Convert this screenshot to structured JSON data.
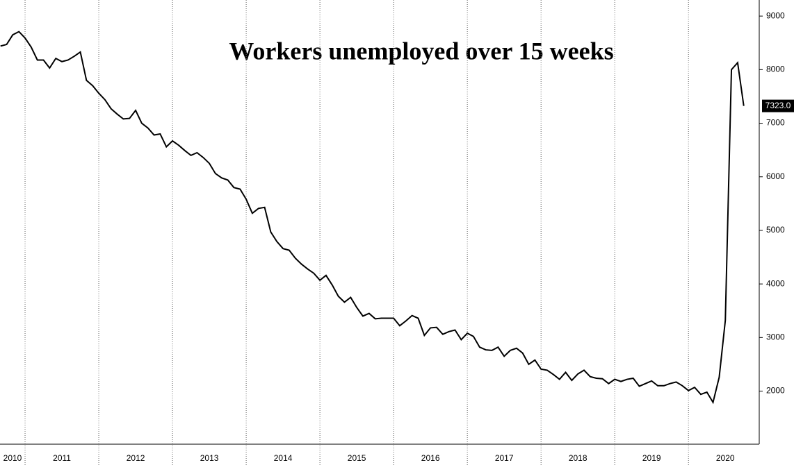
{
  "chart_data": {
    "type": "line",
    "title": "Workers unemployed over 15 weeks",
    "x": [
      2010.667,
      2010.75,
      2010.833,
      2010.917,
      2011,
      2011.083,
      2011.167,
      2011.25,
      2011.333,
      2011.417,
      2011.5,
      2011.583,
      2011.667,
      2011.75,
      2011.833,
      2011.917,
      2012,
      2012.083,
      2012.167,
      2012.25,
      2012.333,
      2012.417,
      2012.5,
      2012.583,
      2012.667,
      2012.75,
      2012.833,
      2012.917,
      2013,
      2013.083,
      2013.167,
      2013.25,
      2013.333,
      2013.417,
      2013.5,
      2013.583,
      2013.667,
      2013.75,
      2013.833,
      2013.917,
      2014,
      2014.083,
      2014.167,
      2014.25,
      2014.333,
      2014.417,
      2014.5,
      2014.583,
      2014.667,
      2014.75,
      2014.833,
      2014.917,
      2015,
      2015.083,
      2015.167,
      2015.25,
      2015.333,
      2015.417,
      2015.5,
      2015.583,
      2015.667,
      2015.75,
      2015.833,
      2015.917,
      2016,
      2016.083,
      2016.167,
      2016.25,
      2016.333,
      2016.417,
      2016.5,
      2016.583,
      2016.667,
      2016.75,
      2016.833,
      2016.917,
      2017,
      2017.083,
      2017.167,
      2017.25,
      2017.333,
      2017.417,
      2017.5,
      2017.583,
      2017.667,
      2017.75,
      2017.833,
      2017.917,
      2018,
      2018.083,
      2018.167,
      2018.25,
      2018.333,
      2018.417,
      2018.5,
      2018.583,
      2018.667,
      2018.75,
      2018.833,
      2018.917,
      2019,
      2019.083,
      2019.167,
      2019.25,
      2019.333,
      2019.417,
      2019.5,
      2019.583,
      2019.667,
      2019.75,
      2019.833,
      2019.917,
      2020,
      2020.083,
      2020.167,
      2020.25,
      2020.333,
      2020.417,
      2020.5,
      2020.583,
      2020.667,
      2020.75
    ],
    "values": [
      8440,
      8470,
      8650,
      8710,
      8590,
      8420,
      8180,
      8180,
      8030,
      8210,
      8150,
      8180,
      8250,
      8330,
      7800,
      7700,
      7560,
      7440,
      7270,
      7170,
      7080,
      7090,
      7240,
      7000,
      6910,
      6780,
      6800,
      6560,
      6670,
      6590,
      6490,
      6400,
      6450,
      6360,
      6250,
      6060,
      5980,
      5940,
      5800,
      5770,
      5580,
      5320,
      5410,
      5430,
      4970,
      4790,
      4660,
      4630,
      4480,
      4370,
      4280,
      4200,
      4070,
      4160,
      3980,
      3770,
      3660,
      3750,
      3560,
      3400,
      3450,
      3350,
      3360,
      3360,
      3360,
      3220,
      3310,
      3410,
      3360,
      3040,
      3180,
      3190,
      3060,
      3110,
      3140,
      2960,
      3080,
      3020,
      2820,
      2770,
      2760,
      2820,
      2650,
      2760,
      2800,
      2710,
      2500,
      2580,
      2410,
      2390,
      2310,
      2220,
      2350,
      2200,
      2320,
      2390,
      2270,
      2240,
      2230,
      2140,
      2220,
      2180,
      2220,
      2240,
      2090,
      2140,
      2190,
      2100,
      2100,
      2140,
      2170,
      2100,
      2010,
      2070,
      1940,
      1980,
      1790,
      2260,
      3320,
      8000,
      8130,
      7323
    ],
    "value_labels": [
      null,
      null,
      null,
      null,
      null,
      null,
      null,
      null,
      null,
      null,
      null,
      null,
      null,
      null,
      null,
      null,
      null,
      null,
      null,
      null,
      null,
      null,
      null,
      null,
      null,
      null,
      null,
      null,
      null,
      null,
      null,
      null,
      null,
      null,
      null,
      null,
      null,
      null,
      null,
      null,
      null,
      null,
      null,
      null,
      null,
      null,
      null,
      null,
      null,
      null,
      null,
      null,
      null,
      null,
      null,
      null,
      null,
      null,
      null,
      null,
      null,
      null,
      null,
      null,
      null,
      null,
      null,
      null,
      null,
      null,
      null,
      null,
      null,
      null,
      null,
      null,
      null,
      null,
      null,
      null,
      null,
      null,
      null,
      null,
      null,
      null,
      null,
      null,
      null,
      null,
      null,
      null,
      null,
      null,
      null,
      null,
      null,
      null,
      null,
      null,
      null,
      null,
      null,
      null,
      null,
      null,
      null,
      null,
      null,
      null,
      null,
      null,
      null,
      null,
      null,
      null,
      null,
      null,
      null,
      null,
      null,
      "7323.0"
    ],
    "color": "#000000",
    "xlim": [
      2010.66,
      2020.96
    ],
    "xticks": [
      {
        "value": 2010.5,
        "label": "2010"
      },
      {
        "value": 2011.5,
        "label": "2011"
      },
      {
        "value": 2012.5,
        "label": "2012"
      },
      {
        "value": 2013.5,
        "label": "2013"
      },
      {
        "value": 2014.5,
        "label": "2014"
      },
      {
        "value": 2015.5,
        "label": "2015"
      },
      {
        "value": 2016.5,
        "label": "2016"
      },
      {
        "value": 2017.5,
        "label": "2017"
      },
      {
        "value": 2018.5,
        "label": "2018"
      },
      {
        "value": 2019.5,
        "label": "2019"
      },
      {
        "value": 2020.5,
        "label": "2020"
      }
    ],
    "x_gridlines": [
      2011,
      2012,
      2013,
      2014,
      2015,
      2016,
      2017,
      2018,
      2019,
      2020
    ],
    "ylim": [
      1100,
      9300
    ],
    "yticks": [
      2000,
      3000,
      4000,
      5000,
      6000,
      7000,
      8000,
      9000
    ],
    "y_axis_side": "right",
    "grid": true
  }
}
